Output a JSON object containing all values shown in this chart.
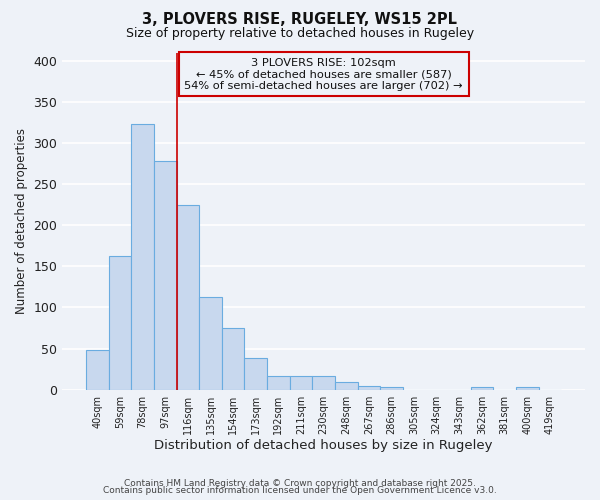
{
  "title": "3, PLOVERS RISE, RUGELEY, WS15 2PL",
  "subtitle": "Size of property relative to detached houses in Rugeley",
  "xlabel": "Distribution of detached houses by size in Rugeley",
  "ylabel": "Number of detached properties",
  "bar_color": "#c8d8ee",
  "bar_edge_color": "#6aace0",
  "categories": [
    "40sqm",
    "59sqm",
    "78sqm",
    "97sqm",
    "116sqm",
    "135sqm",
    "154sqm",
    "173sqm",
    "192sqm",
    "211sqm",
    "230sqm",
    "248sqm",
    "267sqm",
    "286sqm",
    "305sqm",
    "324sqm",
    "343sqm",
    "362sqm",
    "381sqm",
    "400sqm",
    "419sqm"
  ],
  "values": [
    48,
    163,
    323,
    278,
    225,
    113,
    75,
    39,
    17,
    17,
    17,
    9,
    5,
    3,
    0,
    0,
    0,
    3,
    0,
    3,
    0
  ],
  "ylim": [
    0,
    410
  ],
  "yticks": [
    0,
    50,
    100,
    150,
    200,
    250,
    300,
    350,
    400
  ],
  "red_line_x": 3.5,
  "annotation_title": "3 PLOVERS RISE: 102sqm",
  "annotation_line1": "← 45% of detached houses are smaller (587)",
  "annotation_line2": "54% of semi-detached houses are larger (702) →",
  "bg_color": "#eef2f8",
  "grid_color": "#ffffff",
  "footer1": "Contains HM Land Registry data © Crown copyright and database right 2025.",
  "footer2": "Contains public sector information licensed under the Open Government Licence v3.0."
}
